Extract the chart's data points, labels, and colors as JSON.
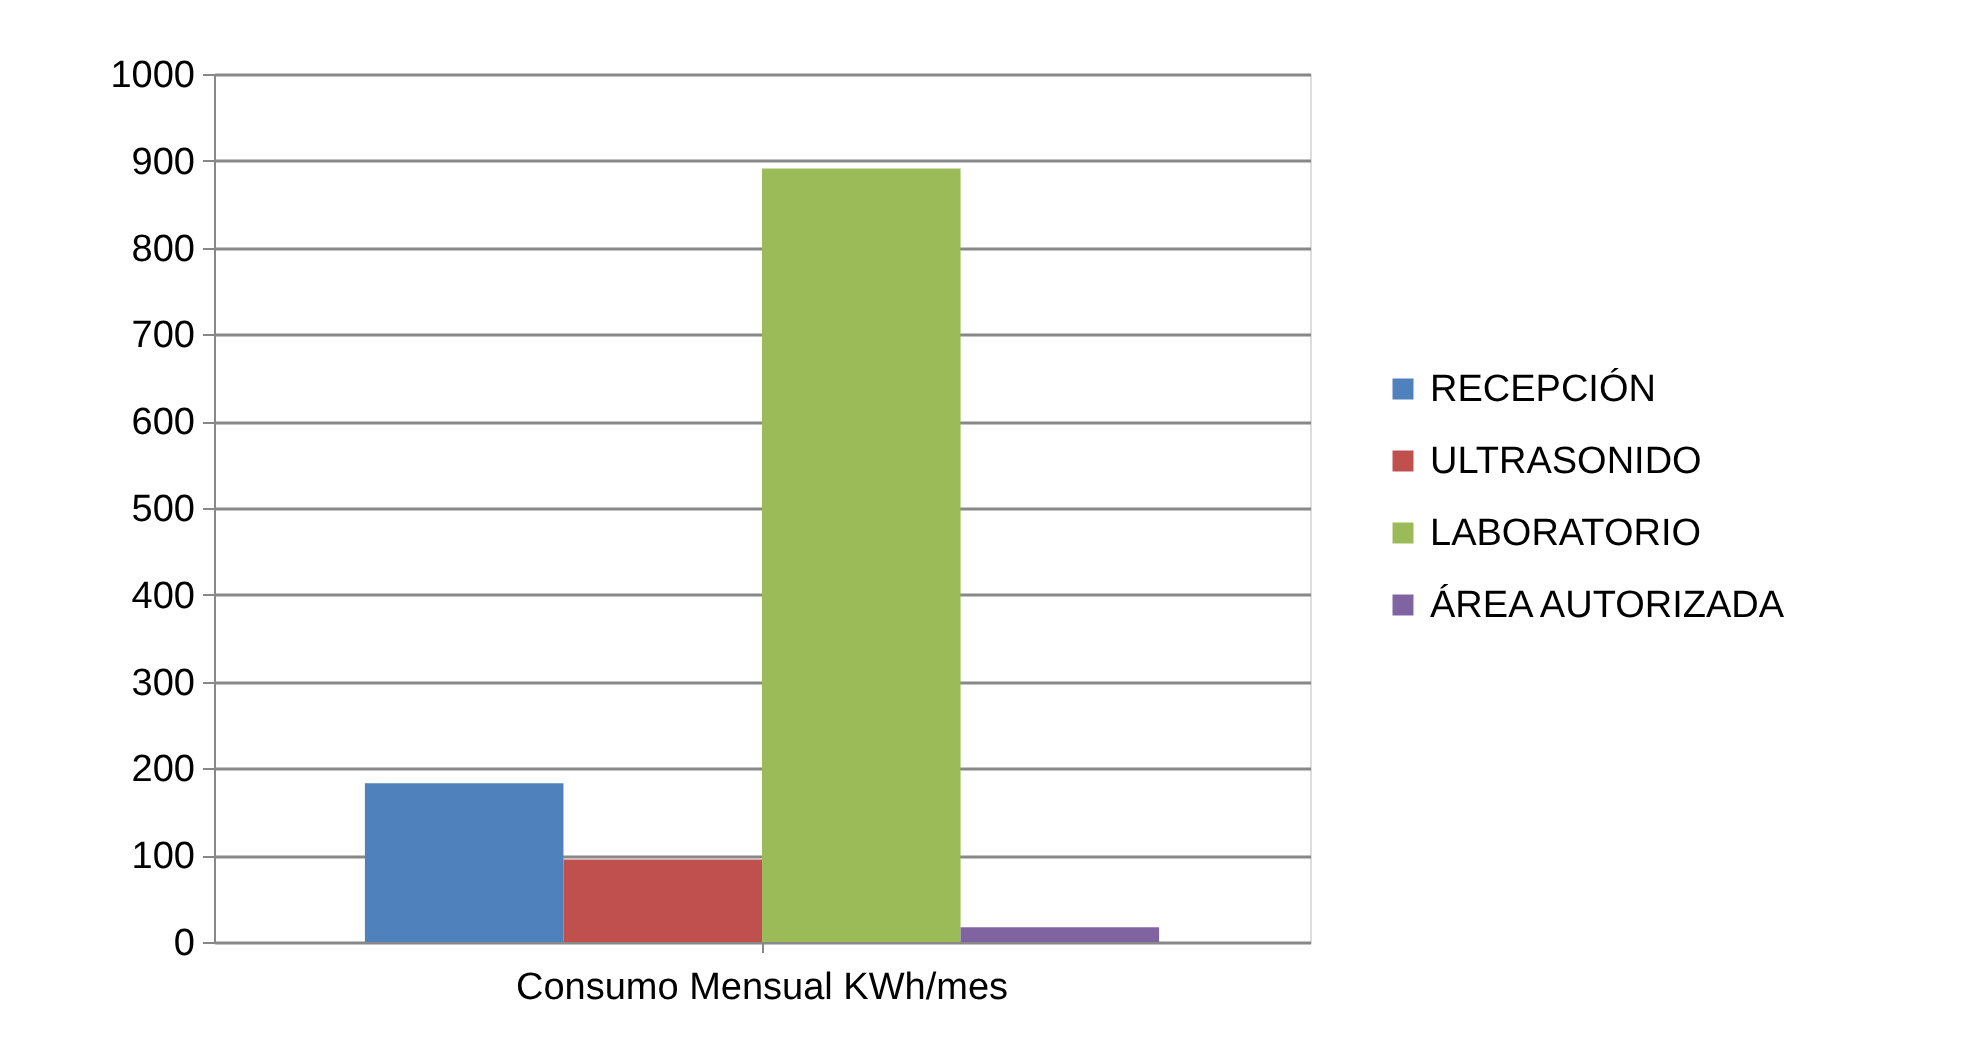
{
  "chart_data": {
    "type": "bar",
    "categories": [
      "Consumo Mensual KWh/mes"
    ],
    "series": [
      {
        "name": "RECEPCIÓN",
        "color": "#4f81bd",
        "values": [
          183
        ]
      },
      {
        "name": "ULTRASONIDO",
        "color": "#c0504d",
        "values": [
          95
        ]
      },
      {
        "name": "LABORATORIO",
        "color": "#9bbb59",
        "values": [
          891
        ]
      },
      {
        "name": "ÁREA AUTORIZADA",
        "color": "#8064a2",
        "values": [
          17
        ]
      }
    ],
    "ylim": [
      0,
      1000
    ],
    "yticks": [
      0,
      100,
      200,
      300,
      400,
      500,
      600,
      700,
      800,
      900,
      1000
    ],
    "grid": "y",
    "legend": "right"
  }
}
